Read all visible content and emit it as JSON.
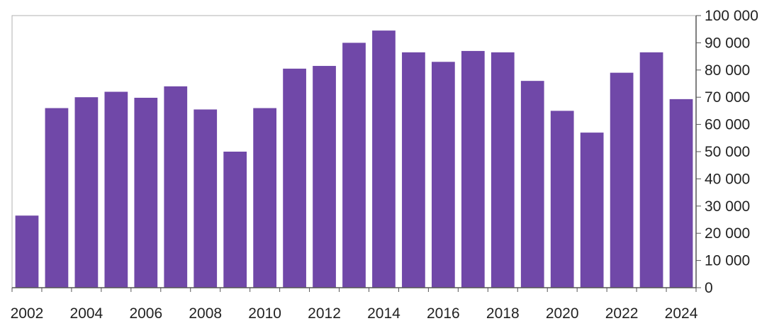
{
  "chart_data": {
    "type": "bar",
    "categories": [
      "2002",
      "2003",
      "2004",
      "2005",
      "2006",
      "2007",
      "2008",
      "2009",
      "2010",
      "2011",
      "2012",
      "2013",
      "2014",
      "2015",
      "2016",
      "2017",
      "2018",
      "2019",
      "2020",
      "2021",
      "2022",
      "2023",
      "2024"
    ],
    "x_tick_labels": [
      "2002",
      "2004",
      "2006",
      "2008",
      "2010",
      "2012",
      "2014",
      "2016",
      "2018",
      "2020",
      "2022",
      "2024"
    ],
    "values": [
      26500,
      66000,
      70000,
      72000,
      69800,
      74000,
      65500,
      50000,
      66000,
      80500,
      81500,
      90000,
      94500,
      86500,
      83000,
      87000,
      86500,
      76000,
      65000,
      57000,
      79000,
      86500,
      69300
    ],
    "y_ticks": [
      "0",
      "10 000",
      "20 000",
      "30 000",
      "40 000",
      "50 000",
      "60 000",
      "70 000",
      "80 000",
      "90 000",
      "100 000"
    ],
    "ylim": [
      0,
      100000
    ],
    "y_axis_side": "right",
    "bar_color": "#7048A8",
    "title": "",
    "xlabel": "",
    "ylabel": "",
    "grid": false,
    "legend": "none"
  }
}
